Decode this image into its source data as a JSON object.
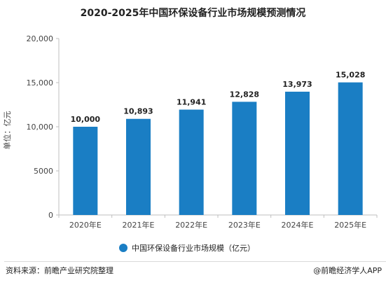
{
  "title": "2020-2025年中国环保设备行业市场规模预测情况",
  "source_text": "资料来源：前瞻产业研究院整理",
  "brand_text": "@前瞻经济学人APP",
  "colors": {
    "bar": "#1a7ec4",
    "axis": "#bfbfbf",
    "text": "#222222"
  },
  "chart_data": {
    "type": "bar",
    "categories": [
      "2020年E",
      "2021年E",
      "2022年E",
      "2023年E",
      "2024年E",
      "2025年E"
    ],
    "series": [
      {
        "name": "中国环保设备行业市场规模（亿元）",
        "values": [
          10000,
          10893,
          11941,
          12828,
          13973,
          15028
        ]
      }
    ],
    "value_labels": [
      "10,000",
      "10,893",
      "11,941",
      "12,828",
      "13,973",
      "15,028"
    ],
    "ylabel": "单位：亿元",
    "ylim": [
      0,
      20000
    ],
    "yticks": [
      0,
      5000,
      10000,
      15000,
      20000
    ],
    "ytick_labels": [
      "0",
      "5000",
      "10,000",
      "15,000",
      "20,000"
    ],
    "grid": false,
    "legend_position": "bottom-center"
  }
}
